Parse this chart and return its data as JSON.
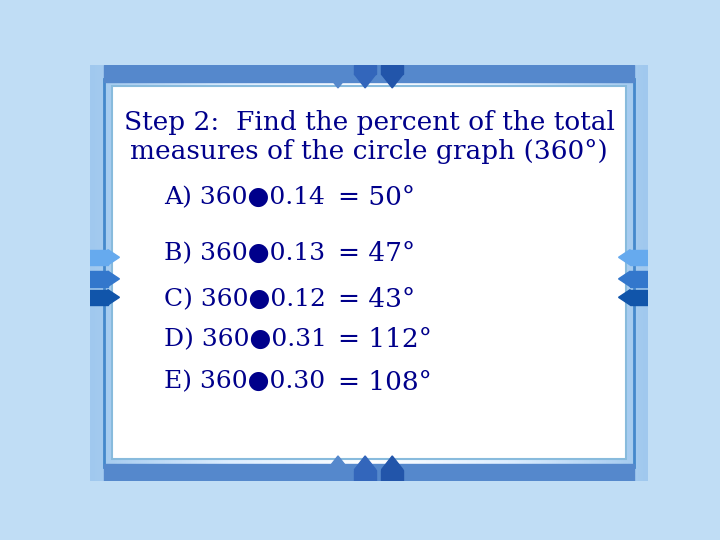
{
  "title_line1": "Step 2:  Find the percent of the total",
  "title_line2": "measures of the circle graph (360°)",
  "lines": [
    {
      "label": "A)",
      "expr": "360●0.14",
      "result": "= 50°"
    },
    {
      "label": "B)",
      "expr": "360●0.13",
      "result": "= 47°"
    },
    {
      "label": "C)",
      "expr": "360●0.12",
      "result": "= 43°"
    },
    {
      "label": "D)",
      "expr": "360●0.31",
      "result": "= 112°"
    },
    {
      "label": "E)",
      "expr": "360●0.30",
      "result": "= 108°"
    }
  ],
  "text_color": "#00008B",
  "bg_outer": "#b8d8f0",
  "bg_inner": "#ffffff",
  "border_color_outer": "#4a8fd4",
  "border_color_inner": "#88bbee",
  "title_fontsize": 19,
  "body_fontsize": 18,
  "fig_bg": "#c0ddf5",
  "arrow_color_dark": "#2255bb",
  "arrow_color_mid": "#3377dd",
  "arrow_color_light": "#66aaff"
}
